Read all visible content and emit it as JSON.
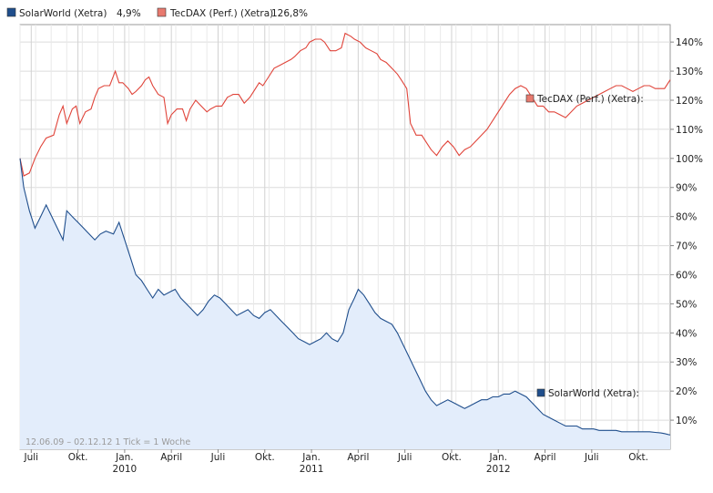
{
  "legend": [
    {
      "name": "SolarWorld (Xetra)",
      "value": "4,9%",
      "color": "#1f4e8c"
    },
    {
      "name": "TecDAX (Perf.) (Xetra)",
      "value": "126,8%",
      "color": "#e0443a"
    }
  ],
  "footer_note": "12.06.09 – 02.12.12   1 Tick = 1 Woche",
  "chart_data": {
    "type": "line",
    "title": "",
    "xlabel": "",
    "ylabel": "",
    "ylim": [
      0,
      146
    ],
    "y_ticks": [
      10,
      20,
      30,
      40,
      50,
      60,
      70,
      80,
      90,
      100,
      110,
      120,
      130,
      140
    ],
    "y_tick_labels": [
      "10%",
      "20%",
      "30%",
      "40%",
      "50%",
      "60%",
      "70%",
      "80%",
      "90%",
      "100%",
      "110%",
      "120%",
      "130%",
      "140%"
    ],
    "x_range": [
      2009.44,
      2012.92
    ],
    "x_ticks": [
      {
        "x": 2009.5,
        "label": "Juli",
        "year": ""
      },
      {
        "x": 2009.75,
        "label": "Okt.",
        "year": ""
      },
      {
        "x": 2010.0,
        "label": "Jan.",
        "year": "2010"
      },
      {
        "x": 2010.25,
        "label": "April",
        "year": ""
      },
      {
        "x": 2010.5,
        "label": "Juli",
        "year": ""
      },
      {
        "x": 2010.75,
        "label": "Okt.",
        "year": ""
      },
      {
        "x": 2011.0,
        "label": "Jan.",
        "year": "2011"
      },
      {
        "x": 2011.25,
        "label": "April",
        "year": ""
      },
      {
        "x": 2011.5,
        "label": "Juli",
        "year": ""
      },
      {
        "x": 2011.75,
        "label": "Okt.",
        "year": ""
      },
      {
        "x": 2012.0,
        "label": "Jan.",
        "year": "2012"
      },
      {
        "x": 2012.25,
        "label": "April",
        "year": ""
      },
      {
        "x": 2012.5,
        "label": "Juli",
        "year": ""
      },
      {
        "x": 2012.75,
        "label": "Okt.",
        "year": ""
      }
    ],
    "series": [
      {
        "name": "TecDAX (Perf.) (Xetra)",
        "label": "TecDAX (Perf.) (Xetra):",
        "color": "#e0443a",
        "points": [
          [
            2009.44,
            100
          ],
          [
            2009.46,
            94
          ],
          [
            2009.49,
            95
          ],
          [
            2009.52,
            100
          ],
          [
            2009.55,
            104
          ],
          [
            2009.58,
            107
          ],
          [
            2009.62,
            108
          ],
          [
            2009.65,
            115
          ],
          [
            2009.67,
            118
          ],
          [
            2009.69,
            112
          ],
          [
            2009.72,
            117
          ],
          [
            2009.74,
            118
          ],
          [
            2009.76,
            112
          ],
          [
            2009.79,
            116
          ],
          [
            2009.82,
            117
          ],
          [
            2009.84,
            121
          ],
          [
            2009.86,
            124
          ],
          [
            2009.89,
            125
          ],
          [
            2009.92,
            125
          ],
          [
            2009.95,
            130
          ],
          [
            2009.97,
            126
          ],
          [
            2009.99,
            126
          ],
          [
            2010.02,
            124
          ],
          [
            2010.04,
            122
          ],
          [
            2010.06,
            123
          ],
          [
            2010.09,
            125
          ],
          [
            2010.11,
            127
          ],
          [
            2010.13,
            128
          ],
          [
            2010.15,
            125
          ],
          [
            2010.18,
            122
          ],
          [
            2010.21,
            121
          ],
          [
            2010.23,
            112
          ],
          [
            2010.25,
            115
          ],
          [
            2010.28,
            117
          ],
          [
            2010.31,
            117
          ],
          [
            2010.33,
            113
          ],
          [
            2010.35,
            117
          ],
          [
            2010.38,
            120
          ],
          [
            2010.41,
            118
          ],
          [
            2010.44,
            116
          ],
          [
            2010.46,
            117
          ],
          [
            2010.49,
            118
          ],
          [
            2010.52,
            118
          ],
          [
            2010.55,
            121
          ],
          [
            2010.58,
            122
          ],
          [
            2010.61,
            122
          ],
          [
            2010.64,
            119
          ],
          [
            2010.67,
            121
          ],
          [
            2010.69,
            123
          ],
          [
            2010.72,
            126
          ],
          [
            2010.74,
            125
          ],
          [
            2010.77,
            128
          ],
          [
            2010.8,
            131
          ],
          [
            2010.83,
            132
          ],
          [
            2010.86,
            133
          ],
          [
            2010.89,
            134
          ],
          [
            2010.91,
            135
          ],
          [
            2010.94,
            137
          ],
          [
            2010.97,
            138
          ],
          [
            2010.99,
            140
          ],
          [
            2011.02,
            141
          ],
          [
            2011.05,
            141
          ],
          [
            2011.07,
            140
          ],
          [
            2011.1,
            137
          ],
          [
            2011.13,
            137
          ],
          [
            2011.16,
            138
          ],
          [
            2011.18,
            143
          ],
          [
            2011.21,
            142
          ],
          [
            2011.23,
            141
          ],
          [
            2011.26,
            140
          ],
          [
            2011.29,
            138
          ],
          [
            2011.32,
            137
          ],
          [
            2011.35,
            136
          ],
          [
            2011.37,
            134
          ],
          [
            2011.4,
            133
          ],
          [
            2011.43,
            131
          ],
          [
            2011.46,
            129
          ],
          [
            2011.48,
            127
          ],
          [
            2011.51,
            124
          ],
          [
            2011.53,
            112
          ],
          [
            2011.56,
            108
          ],
          [
            2011.59,
            108
          ],
          [
            2011.62,
            105
          ],
          [
            2011.64,
            103
          ],
          [
            2011.67,
            101
          ],
          [
            2011.7,
            104
          ],
          [
            2011.73,
            106
          ],
          [
            2011.76,
            104
          ],
          [
            2011.79,
            101
          ],
          [
            2011.82,
            103
          ],
          [
            2011.85,
            104
          ],
          [
            2011.88,
            106
          ],
          [
            2011.91,
            108
          ],
          [
            2011.94,
            110
          ],
          [
            2011.97,
            113
          ],
          [
            2012.0,
            116
          ],
          [
            2012.03,
            119
          ],
          [
            2012.06,
            122
          ],
          [
            2012.09,
            124
          ],
          [
            2012.12,
            125
          ],
          [
            2012.15,
            124
          ],
          [
            2012.18,
            121
          ],
          [
            2012.21,
            118
          ],
          [
            2012.24,
            118
          ],
          [
            2012.27,
            116
          ],
          [
            2012.3,
            116
          ],
          [
            2012.33,
            115
          ],
          [
            2012.36,
            114
          ],
          [
            2012.39,
            116
          ],
          [
            2012.42,
            118
          ],
          [
            2012.45,
            119
          ],
          [
            2012.48,
            120
          ],
          [
            2012.51,
            121
          ],
          [
            2012.54,
            122
          ],
          [
            2012.57,
            123
          ],
          [
            2012.6,
            124
          ],
          [
            2012.63,
            125
          ],
          [
            2012.66,
            125
          ],
          [
            2012.69,
            124
          ],
          [
            2012.72,
            123
          ],
          [
            2012.75,
            124
          ],
          [
            2012.78,
            125
          ],
          [
            2012.81,
            125
          ],
          [
            2012.84,
            124
          ],
          [
            2012.87,
            124
          ],
          [
            2012.89,
            124
          ],
          [
            2012.92,
            127
          ]
        ]
      },
      {
        "name": "SolarWorld (Xetra)",
        "label": "SolarWorld (Xetra):",
        "color": "#1f4e8c",
        "points": [
          [
            2009.44,
            100
          ],
          [
            2009.46,
            90
          ],
          [
            2009.49,
            82
          ],
          [
            2009.52,
            76
          ],
          [
            2009.55,
            80
          ],
          [
            2009.58,
            84
          ],
          [
            2009.61,
            80
          ],
          [
            2009.64,
            76
          ],
          [
            2009.67,
            72
          ],
          [
            2009.69,
            82
          ],
          [
            2009.72,
            80
          ],
          [
            2009.75,
            78
          ],
          [
            2009.78,
            76
          ],
          [
            2009.81,
            74
          ],
          [
            2009.84,
            72
          ],
          [
            2009.87,
            74
          ],
          [
            2009.9,
            75
          ],
          [
            2009.94,
            74
          ],
          [
            2009.97,
            78
          ],
          [
            2010.0,
            72
          ],
          [
            2010.03,
            66
          ],
          [
            2010.06,
            60
          ],
          [
            2010.09,
            58
          ],
          [
            2010.12,
            55
          ],
          [
            2010.15,
            52
          ],
          [
            2010.18,
            55
          ],
          [
            2010.21,
            53
          ],
          [
            2010.24,
            54
          ],
          [
            2010.27,
            55
          ],
          [
            2010.3,
            52
          ],
          [
            2010.33,
            50
          ],
          [
            2010.36,
            48
          ],
          [
            2010.39,
            46
          ],
          [
            2010.42,
            48
          ],
          [
            2010.45,
            51
          ],
          [
            2010.48,
            53
          ],
          [
            2010.51,
            52
          ],
          [
            2010.54,
            50
          ],
          [
            2010.57,
            48
          ],
          [
            2010.6,
            46
          ],
          [
            2010.63,
            47
          ],
          [
            2010.66,
            48
          ],
          [
            2010.69,
            46
          ],
          [
            2010.72,
            45
          ],
          [
            2010.75,
            47
          ],
          [
            2010.78,
            48
          ],
          [
            2010.81,
            46
          ],
          [
            2010.84,
            44
          ],
          [
            2010.87,
            42
          ],
          [
            2010.9,
            40
          ],
          [
            2010.93,
            38
          ],
          [
            2010.96,
            37
          ],
          [
            2010.99,
            36
          ],
          [
            2011.02,
            37
          ],
          [
            2011.05,
            38
          ],
          [
            2011.08,
            40
          ],
          [
            2011.11,
            38
          ],
          [
            2011.14,
            37
          ],
          [
            2011.17,
            40
          ],
          [
            2011.2,
            48
          ],
          [
            2011.23,
            52
          ],
          [
            2011.25,
            55
          ],
          [
            2011.28,
            53
          ],
          [
            2011.31,
            50
          ],
          [
            2011.34,
            47
          ],
          [
            2011.37,
            45
          ],
          [
            2011.4,
            44
          ],
          [
            2011.43,
            43
          ],
          [
            2011.46,
            40
          ],
          [
            2011.49,
            36
          ],
          [
            2011.52,
            32
          ],
          [
            2011.55,
            28
          ],
          [
            2011.58,
            24
          ],
          [
            2011.61,
            20
          ],
          [
            2011.64,
            17
          ],
          [
            2011.67,
            15
          ],
          [
            2011.7,
            16
          ],
          [
            2011.73,
            17
          ],
          [
            2011.76,
            16
          ],
          [
            2011.79,
            15
          ],
          [
            2011.82,
            14
          ],
          [
            2011.85,
            15
          ],
          [
            2011.88,
            16
          ],
          [
            2011.91,
            17
          ],
          [
            2011.94,
            17
          ],
          [
            2011.97,
            18
          ],
          [
            2012.0,
            18
          ],
          [
            2012.03,
            19
          ],
          [
            2012.06,
            19
          ],
          [
            2012.09,
            20
          ],
          [
            2012.12,
            19
          ],
          [
            2012.15,
            18
          ],
          [
            2012.18,
            16
          ],
          [
            2012.21,
            14
          ],
          [
            2012.24,
            12
          ],
          [
            2012.27,
            11
          ],
          [
            2012.3,
            10
          ],
          [
            2012.33,
            9
          ],
          [
            2012.36,
            8
          ],
          [
            2012.39,
            8
          ],
          [
            2012.42,
            8
          ],
          [
            2012.45,
            7
          ],
          [
            2012.48,
            7
          ],
          [
            2012.51,
            7
          ],
          [
            2012.54,
            6.5
          ],
          [
            2012.57,
            6.5
          ],
          [
            2012.6,
            6.5
          ],
          [
            2012.63,
            6.5
          ],
          [
            2012.66,
            6
          ],
          [
            2012.69,
            6
          ],
          [
            2012.72,
            6
          ],
          [
            2012.75,
            6
          ],
          [
            2012.78,
            6
          ],
          [
            2012.81,
            6
          ],
          [
            2012.84,
            5.8
          ],
          [
            2012.87,
            5.6
          ],
          [
            2012.89,
            5.4
          ],
          [
            2012.92,
            4.9
          ]
        ]
      }
    ]
  }
}
